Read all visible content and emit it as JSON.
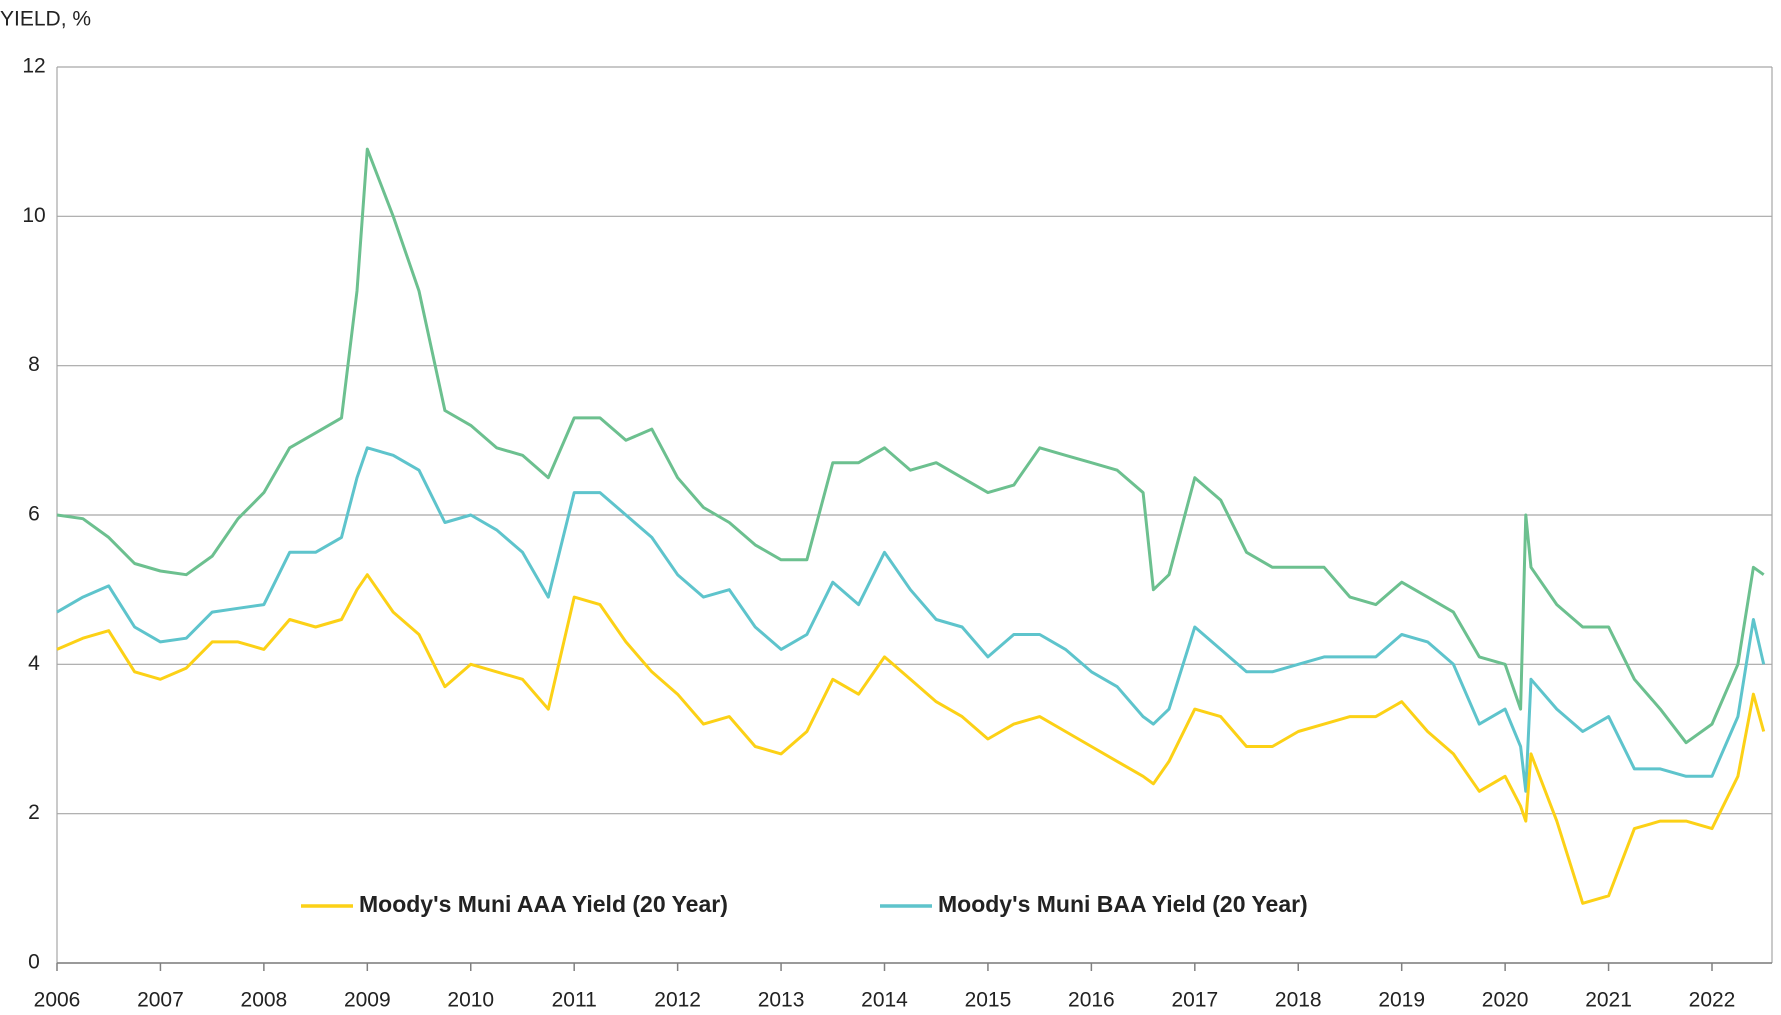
{
  "chart_data": {
    "type": "line",
    "y_axis_title": "YIELD, %",
    "x": [
      2006.0,
      2006.25,
      2006.5,
      2006.75,
      2007.0,
      2007.25,
      2007.5,
      2007.75,
      2008.0,
      2008.25,
      2008.5,
      2008.75,
      2008.9,
      2009.0,
      2009.25,
      2009.5,
      2009.75,
      2010.0,
      2010.25,
      2010.5,
      2010.75,
      2011.0,
      2011.25,
      2011.5,
      2011.75,
      2012.0,
      2012.25,
      2012.5,
      2012.75,
      2013.0,
      2013.25,
      2013.5,
      2013.75,
      2014.0,
      2014.25,
      2014.5,
      2014.75,
      2015.0,
      2015.25,
      2015.5,
      2015.75,
      2016.0,
      2016.25,
      2016.5,
      2016.6,
      2016.75,
      2017.0,
      2017.25,
      2017.5,
      2017.75,
      2018.0,
      2018.25,
      2018.5,
      2018.75,
      2019.0,
      2019.25,
      2019.5,
      2019.75,
      2020.0,
      2020.15,
      2020.2,
      2020.25,
      2020.5,
      2020.75,
      2021.0,
      2021.25,
      2021.5,
      2021.75,
      2022.0,
      2022.25,
      2022.4,
      2022.5
    ],
    "series": [
      {
        "name": "Moody's Muni AAA Yield (20 Year)",
        "color": "#fcd116",
        "values": [
          4.2,
          4.35,
          4.45,
          3.9,
          3.8,
          3.95,
          4.3,
          4.3,
          4.2,
          4.6,
          4.5,
          4.6,
          5.0,
          5.2,
          4.7,
          4.4,
          3.7,
          4.0,
          3.9,
          3.8,
          3.4,
          4.9,
          4.8,
          4.3,
          3.9,
          3.6,
          3.2,
          3.3,
          2.9,
          2.8,
          3.1,
          3.8,
          3.6,
          4.1,
          3.8,
          3.5,
          3.3,
          3.0,
          3.2,
          3.3,
          3.1,
          2.9,
          2.7,
          2.5,
          2.4,
          2.7,
          3.4,
          3.3,
          2.9,
          2.9,
          3.1,
          3.2,
          3.3,
          3.3,
          3.5,
          3.1,
          2.8,
          2.3,
          2.5,
          2.1,
          1.9,
          2.8,
          1.9,
          0.8,
          0.9,
          1.8,
          1.9,
          1.9,
          1.8,
          2.5,
          3.6,
          3.1
        ]
      },
      {
        "name": "Moody's Muni BAA Yield (20 Year)",
        "color": "#5ec4cc",
        "values": [
          4.7,
          4.9,
          5.05,
          4.5,
          4.3,
          4.35,
          4.7,
          4.75,
          4.8,
          5.5,
          5.5,
          5.7,
          6.5,
          6.9,
          6.8,
          6.6,
          5.9,
          6.0,
          5.8,
          5.5,
          4.9,
          6.3,
          6.3,
          6.0,
          5.7,
          5.2,
          4.9,
          5.0,
          4.5,
          4.2,
          4.4,
          5.1,
          4.8,
          5.5,
          5.0,
          4.6,
          4.5,
          4.1,
          4.4,
          4.4,
          4.2,
          3.9,
          3.7,
          3.3,
          3.2,
          3.4,
          4.5,
          4.2,
          3.9,
          3.9,
          4.0,
          4.1,
          4.1,
          4.1,
          4.4,
          4.3,
          4.0,
          3.2,
          3.4,
          2.9,
          2.3,
          3.8,
          3.4,
          3.1,
          3.3,
          2.6,
          2.6,
          2.5,
          2.5,
          3.3,
          4.6,
          4.0
        ]
      },
      {
        "color": "#6cc08f",
        "values": [
          6.0,
          5.95,
          5.7,
          5.35,
          5.25,
          5.2,
          5.45,
          5.95,
          6.3,
          6.9,
          7.1,
          7.3,
          9.0,
          10.9,
          10.0,
          9.0,
          7.4,
          7.2,
          6.9,
          6.8,
          6.5,
          7.3,
          7.3,
          7.0,
          7.15,
          6.5,
          6.1,
          5.9,
          5.6,
          5.4,
          5.4,
          6.7,
          6.7,
          6.9,
          6.6,
          6.7,
          6.5,
          6.3,
          6.4,
          6.9,
          6.8,
          6.7,
          6.6,
          6.3,
          5.0,
          5.2,
          6.5,
          6.2,
          5.5,
          5.3,
          5.3,
          5.3,
          4.9,
          4.8,
          5.1,
          4.9,
          4.7,
          4.1,
          4.0,
          3.4,
          6.0,
          5.3,
          4.8,
          4.5,
          4.5,
          3.8,
          3.4,
          2.95,
          3.2,
          4.0,
          5.3,
          5.2
        ]
      }
    ],
    "xlim": [
      2006,
      2022.58
    ],
    "xticks": [
      2006,
      2007,
      2008,
      2009,
      2010,
      2011,
      2012,
      2013,
      2014,
      2015,
      2016,
      2017,
      2018,
      2019,
      2020,
      2021,
      2022
    ],
    "ylim": [
      0,
      12
    ],
    "yticks": [
      0,
      2,
      4,
      6,
      8,
      10,
      12
    ],
    "grid": true
  }
}
